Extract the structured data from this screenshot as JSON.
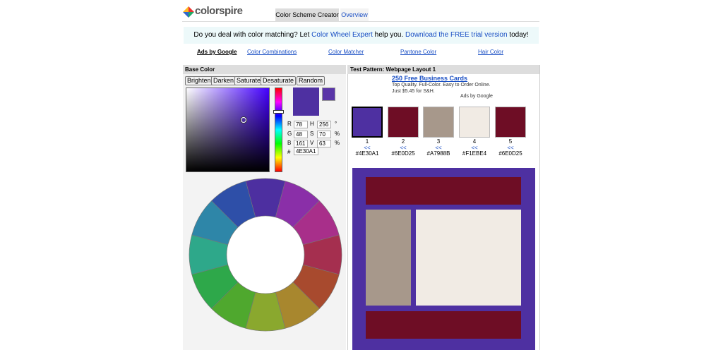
{
  "header": {
    "logo": "colorspire",
    "tabs": [
      "Color Scheme Creator",
      "Overview"
    ]
  },
  "banner": {
    "text_1": "Do you deal with color matching? Let ",
    "link_1": "Color Wheel Expert",
    "text_2": " help you. ",
    "link_2": "Download the FREE trial version",
    "text_3": " today!"
  },
  "nav": [
    "Ads by Google",
    "Color Combinations",
    "Color Matcher",
    "Pantone Color",
    "Hair Color"
  ],
  "base_color": {
    "title": "Base Color",
    "buttons": [
      "Brighten",
      "Darken",
      "Saturate",
      "Desaturate",
      "Random"
    ],
    "fields": [
      {
        "label": "R",
        "value": "78"
      },
      {
        "label": "H",
        "value": "256",
        "unit": "°"
      },
      {
        "label": "G",
        "value": "48"
      },
      {
        "label": "S",
        "value": "70",
        "unit": "%"
      },
      {
        "label": "B",
        "value": "161"
      },
      {
        "label": "V",
        "value": "63",
        "unit": "%"
      }
    ],
    "hex_label": "#",
    "hex": "4E30A1"
  },
  "test_pattern": {
    "title": "Test Pattern: Webpage Layout 1",
    "ad": {
      "title": "250 Free Business Cards",
      "text": "Top Quality. Full-Color. Easy to Order Online. Just $5.45 for S&H.",
      "ads_by": "Ads by Google"
    },
    "swatches": [
      {
        "number": "1",
        "arrow": "<<",
        "hex": "#4E30A1"
      },
      {
        "number": "2",
        "arrow": "<<",
        "hex": "#6E0D25"
      },
      {
        "number": "3",
        "arrow": "<<",
        "hex": "#A7988B"
      },
      {
        "number": "4",
        "arrow": "<<",
        "hex": "#F1EBE4"
      },
      {
        "number": "5",
        "arrow": "<<",
        "hex": "#6E0D25"
      }
    ]
  }
}
